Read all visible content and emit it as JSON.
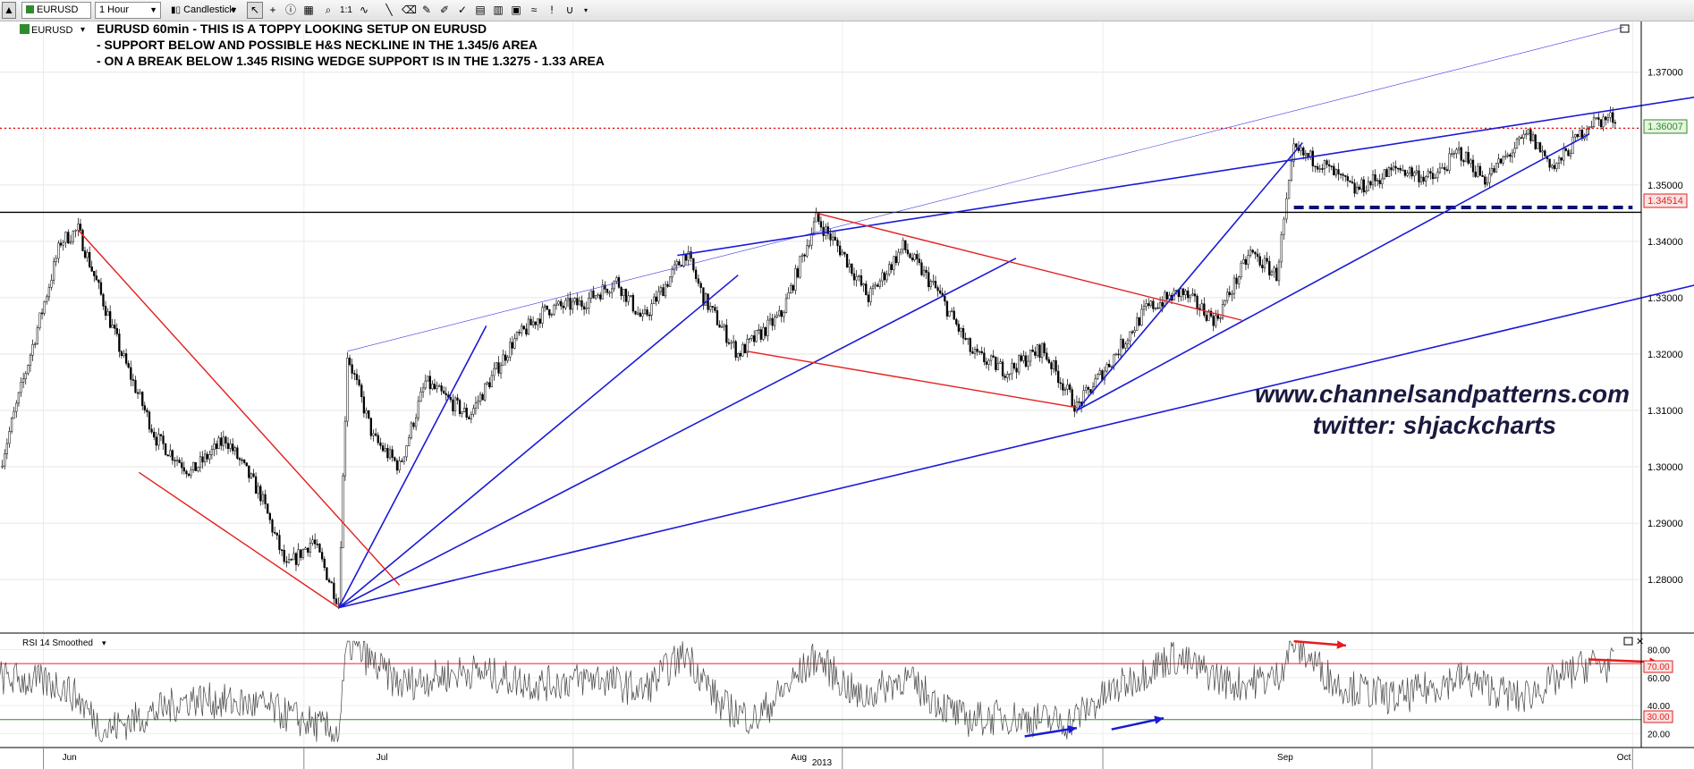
{
  "toolbar": {
    "symbol": "EURUSD",
    "interval": "1 Hour",
    "chart_type": "Candlestick"
  },
  "chart_data": [
    {
      "type": "candlestick",
      "symbol_label": "EURUSD",
      "annotation_lines": [
        "EURUSD 60min - THIS IS A TOPPY LOOKING SETUP ON EURUSD",
        "- SUPPORT BELOW AND POSSIBLE H&S NECKLINE IN THE 1.345/6 AREA",
        "- ON A BREAK BELOW 1.345 RISING WEDGE SUPPORT IS IN THE 1.3275 - 1.33 AREA"
      ],
      "watermark": [
        "www.channelsandpatterns.com",
        "twitter: shjackcharts"
      ],
      "ylim": [
        1.2705,
        1.379
      ],
      "yticks": [
        1.28,
        1.29,
        1.3,
        1.31,
        1.32,
        1.33,
        1.34,
        1.35,
        1.36,
        1.37
      ],
      "ytick_labels": [
        "1.28000",
        "1.29000",
        "1.30000",
        "1.31000",
        "1.32000",
        "1.33000",
        "1.34000",
        "1.35000",
        "1.36000",
        "1.37000"
      ],
      "grid": true,
      "last_price": 1.36007,
      "last_price_label": "1.36007",
      "support_level": 1.34514,
      "support_label": "1.34514",
      "path": [
        [
          "May 27",
          1.3
        ],
        [
          "Jun 3",
          1.34
        ],
        [
          "Jun 5",
          1.342
        ],
        [
          "Jun 10",
          1.32
        ],
        [
          "Jun 14",
          1.305
        ],
        [
          "Jun 18",
          1.299
        ],
        [
          "Jun 22",
          1.305
        ],
        [
          "Jun 26",
          1.295
        ],
        [
          "Jun 29",
          1.282
        ],
        [
          "Jul 2",
          1.287
        ],
        [
          "Jul 5",
          1.276
        ],
        [
          "Jul 6",
          1.32
        ],
        [
          "Jul 9",
          1.305
        ],
        [
          "Jul 12",
          1.3
        ],
        [
          "Jul 15",
          1.315
        ],
        [
          "Jul 20",
          1.309
        ],
        [
          "Jul 25",
          1.322
        ],
        [
          "Jul 29",
          1.328
        ],
        [
          "Aug 2",
          1.329
        ],
        [
          "Aug 6",
          1.333
        ],
        [
          "Aug 9",
          1.326
        ],
        [
          "Aug 14",
          1.338
        ],
        [
          "Aug 16",
          1.33
        ],
        [
          "Aug 20",
          1.32
        ],
        [
          "Aug 25",
          1.327
        ],
        [
          "Aug 29",
          1.344
        ],
        [
          "Sep 1",
          1.338
        ],
        [
          "Sep 4",
          1.33
        ],
        [
          "Sep 8",
          1.339
        ],
        [
          "Sep 12",
          1.331
        ],
        [
          "Sep 16",
          1.32
        ],
        [
          "Sep 20",
          1.317
        ],
        [
          "Sep 24",
          1.321
        ],
        [
          "Sep 28",
          1.3105
        ],
        [
          "Oct 2",
          1.319
        ],
        [
          "Oct 6",
          1.328
        ],
        [
          "Oct 10",
          1.331
        ],
        [
          "Oct 14",
          1.326
        ],
        [
          "Oct 18",
          1.338
        ],
        [
          "Oct 21",
          1.334
        ],
        [
          "Oct 23",
          1.356
        ],
        [
          "Oct 26",
          1.354
        ],
        [
          "Oct 30",
          1.349
        ],
        [
          "Nov 4",
          1.353
        ],
        [
          "Nov 8",
          1.351
        ],
        [
          "Nov 11",
          1.356
        ],
        [
          "Nov 14",
          1.351
        ],
        [
          "Nov 19",
          1.359
        ],
        [
          "Nov 22",
          1.353
        ],
        [
          "Nov 26",
          1.361
        ],
        [
          "Nov 29",
          1.362
        ]
      ],
      "trendlines_blue": [
        [
          [
            "Jul 5",
            1.275
          ],
          [
            "Jul 22",
            1.325
          ]
        ],
        [
          [
            "Jul 5",
            1.275
          ],
          [
            "Aug 20",
            1.334
          ]
        ],
        [
          [
            "Jul 5",
            1.275
          ],
          [
            "Sep 21",
            1.337
          ]
        ],
        [
          [
            "Jul 5",
            1.275
          ],
          [
            "Dec 13",
            1.334
          ]
        ],
        [
          [
            "Aug 13",
            1.3375
          ],
          [
            "Dec 10",
            1.366
          ]
        ],
        [
          [
            "Sep 28",
            1.31
          ],
          [
            "Oct 24",
            1.3575
          ]
        ],
        [
          [
            "Sep 28",
            1.31
          ],
          [
            "Nov 26",
            1.359
          ]
        ]
      ],
      "trendline_blue_thin": [
        [
          "Jul 6",
          1.3205
        ],
        [
          "Nov 30",
          1.378
        ]
      ],
      "trendlines_red": [
        [
          [
            "Jun 5",
            1.342
          ],
          [
            "Jul 12",
            1.279
          ]
        ],
        [
          [
            "Jun 12",
            1.299
          ],
          [
            "Jul 5",
            1.275
          ]
        ],
        [
          [
            "Aug 29",
            1.345
          ],
          [
            "Oct 17",
            1.326
          ]
        ],
        [
          [
            "Aug 21",
            1.3205
          ],
          [
            "Sep 28",
            1.3105
          ]
        ]
      ],
      "dashed_level": {
        "value": 1.346,
        "from": "Oct 23",
        "to": "Dec 1"
      }
    },
    {
      "type": "line",
      "name": "RSI 14 Smoothed",
      "ylim": [
        10,
        88
      ],
      "yticks": [
        20,
        40,
        60,
        80
      ],
      "ytick_labels": [
        "20.00",
        "40.00",
        "60.00",
        "80.00"
      ],
      "overbought": 70,
      "overbought_label": "70.00",
      "oversold": 30,
      "oversold_label": "30.00",
      "path": [
        [
          "May 27",
          60
        ],
        [
          "Jun 3",
          55
        ],
        [
          "Jun 5",
          45
        ],
        [
          "Jun 8",
          22
        ],
        [
          "Jun 18",
          45
        ],
        [
          "Jun 26",
          40
        ],
        [
          "Jul 5",
          20
        ],
        [
          "Jul 6",
          85
        ],
        [
          "Jul 12",
          55
        ],
        [
          "Jul 20",
          65
        ],
        [
          "Jul 28",
          55
        ],
        [
          "Aug 4",
          60
        ],
        [
          "Aug 9",
          50
        ],
        [
          "Aug 14",
          78
        ],
        [
          "Aug 18",
          40
        ],
        [
          "Aug 22",
          30
        ],
        [
          "Aug 29",
          75
        ],
        [
          "Sep 3",
          45
        ],
        [
          "Sep 8",
          60
        ],
        [
          "Sep 15",
          30
        ],
        [
          "Sep 20",
          32
        ],
        [
          "Sep 27",
          28
        ],
        [
          "Oct 2",
          50
        ],
        [
          "Oct 9",
          75
        ],
        [
          "Oct 16",
          55
        ],
        [
          "Oct 21",
          60
        ],
        [
          "Oct 23",
          85
        ],
        [
          "Oct 28",
          55
        ],
        [
          "Nov 4",
          45
        ],
        [
          "Nov 11",
          60
        ],
        [
          "Nov 18",
          45
        ],
        [
          "Nov 26",
          70
        ],
        [
          "Nov 29",
          68
        ]
      ],
      "arrows_blue": [
        [
          [
            "Sep 22",
            18
          ],
          [
            "Sep 28",
            24
          ]
        ],
        [
          [
            "Oct 2",
            23
          ],
          [
            "Oct 8",
            31
          ]
        ]
      ],
      "arrows_red": [
        [
          [
            "Oct 23",
            86
          ],
          [
            "Oct 29",
            83
          ]
        ],
        [
          [
            "Nov 26",
            73
          ],
          [
            "Dec 4",
            71
          ]
        ]
      ]
    }
  ],
  "x_axis": {
    "month_labels": [
      "Jun",
      "Jul",
      "Aug",
      "Sep",
      "Oct"
    ],
    "month_positions": [
      "Jun 4",
      "Jul 10",
      "Aug 27",
      "Oct 22",
      "Nov 30"
    ],
    "year_label": "2013"
  }
}
